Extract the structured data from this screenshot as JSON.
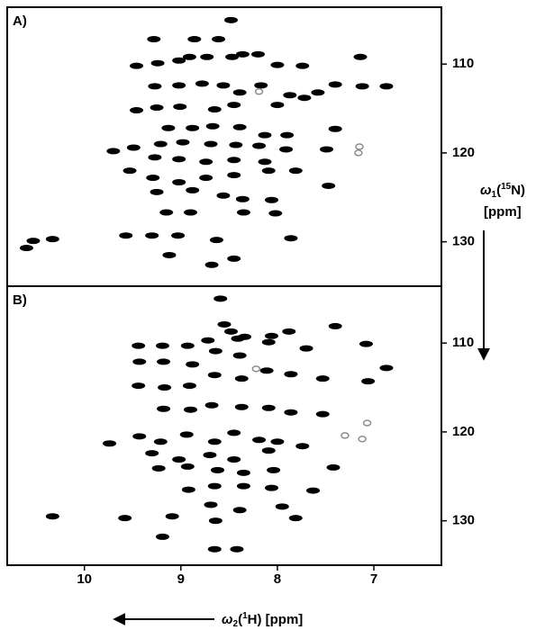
{
  "chart_data": [
    {
      "type": "scatter",
      "label": "A)",
      "xlim": [
        10.8,
        6.3
      ],
      "ylim": [
        135,
        103.6
      ],
      "yticks": [
        110,
        120,
        130
      ],
      "color": "#000000",
      "minor_color": "#8c8c8c",
      "ylabel": [
        "ω",
        "1",
        "(",
        "15",
        "N)",
        "[ppm]"
      ],
      "x": [
        9.28,
        8.86,
        8.61,
        8.48,
        9.46,
        9.24,
        9.02,
        8.91,
        8.73,
        8.47,
        8.36,
        8.2,
        8.0,
        7.74,
        7.14,
        9.27,
        9.02,
        8.78,
        8.56,
        8.39,
        8.17,
        7.87,
        7.58,
        7.4,
        7.12,
        6.87,
        9.46,
        9.25,
        9.01,
        8.65,
        8.45,
        8.0,
        7.72,
        7.4,
        9.13,
        8.88,
        8.67,
        8.39,
        8.13,
        7.9,
        9.7,
        9.49,
        9.21,
        8.98,
        8.69,
        8.43,
        8.19,
        7.91,
        7.49,
        9.27,
        9.02,
        8.74,
        8.45,
        8.13,
        9.53,
        9.29,
        9.02,
        8.74,
        8.45,
        8.09,
        7.81,
        9.25,
        8.88,
        8.56,
        8.36,
        8.06,
        7.47,
        9.15,
        8.9,
        8.35,
        8.02,
        10.53,
        10.33,
        10.6,
        9.57,
        9.3,
        9.03,
        8.63,
        7.86,
        9.12,
        8.68,
        8.45
      ],
      "y": [
        107.2,
        107.2,
        107.2,
        105.05,
        110.2,
        109.9,
        109.6,
        109.2,
        109.2,
        109.2,
        108.9,
        108.9,
        110.1,
        110.2,
        109.2,
        112.5,
        112.4,
        112.2,
        112.4,
        113.2,
        112.4,
        113.5,
        113.2,
        112.3,
        112.5,
        112.5,
        115.2,
        114.9,
        114.8,
        115.1,
        114.6,
        114.6,
        113.8,
        117.3,
        117.2,
        117.2,
        117.0,
        117.1,
        118.0,
        118.0,
        119.8,
        119.4,
        119.0,
        118.8,
        119.0,
        119.1,
        119.2,
        119.6,
        119.6,
        120.5,
        120.7,
        121.0,
        120.8,
        121.0,
        122.0,
        122.8,
        123.3,
        122.8,
        122.5,
        122.0,
        122.0,
        124.4,
        124.2,
        124.8,
        125.2,
        125.3,
        123.7,
        126.7,
        126.7,
        126.7,
        126.8,
        129.9,
        129.7,
        130.7,
        129.3,
        129.3,
        129.3,
        129.8,
        129.6,
        131.5,
        132.6,
        131.9
      ],
      "minor_x": [
        8.19,
        7.15,
        7.16
      ],
      "minor_y": [
        113.1,
        119.3,
        120.0
      ]
    },
    {
      "type": "scatter",
      "label": "B)",
      "xlim": [
        10.8,
        6.3
      ],
      "ylim": [
        135,
        103.6
      ],
      "yticks": [
        110,
        120,
        130
      ],
      "xticks": [
        10,
        9,
        8,
        7
      ],
      "color": "#000000",
      "minor_color": "#8c8c8c",
      "xlabel": [
        "ω",
        "2",
        "(",
        "1",
        "H) [ppm]"
      ],
      "x": [
        8.59,
        8.55,
        8.48,
        8.41,
        8.72,
        8.34,
        8.06,
        7.88,
        7.4,
        9.44,
        9.19,
        8.93,
        8.64,
        8.39,
        8.09,
        7.7,
        7.08,
        6.87,
        9.43,
        9.18,
        8.88,
        9.44,
        9.17,
        8.91,
        8.65,
        8.37,
        8.11,
        7.86,
        7.53,
        7.06,
        9.18,
        8.9,
        8.68,
        8.37,
        8.09,
        7.86,
        7.53,
        9.74,
        9.43,
        9.21,
        8.94,
        8.65,
        8.45,
        8.19,
        8.0,
        7.74,
        9.3,
        9.02,
        8.7,
        8.45,
        8.09,
        9.23,
        8.93,
        8.62,
        8.35,
        8.04,
        7.42,
        8.92,
        8.65,
        8.35,
        8.06,
        7.63,
        8.69,
        8.39,
        7.95,
        10.33,
        9.58,
        9.09,
        8.64,
        7.81,
        9.19,
        8.65,
        8.42
      ],
      "y": [
        105.0,
        107.9,
        108.7,
        109.5,
        109.7,
        109.3,
        109.2,
        108.7,
        108.1,
        110.3,
        110.3,
        110.3,
        110.9,
        111.4,
        109.9,
        110.6,
        110.1,
        112.8,
        112.1,
        112.1,
        112.4,
        114.8,
        115.0,
        114.8,
        113.6,
        114.0,
        113.1,
        113.5,
        114.0,
        114.3,
        117.4,
        117.5,
        117.0,
        117.2,
        117.3,
        117.8,
        118.0,
        121.3,
        120.5,
        121.1,
        120.3,
        121.1,
        120.1,
        120.9,
        121.1,
        121.6,
        122.4,
        123.1,
        122.6,
        123.1,
        122.1,
        124.1,
        123.9,
        124.3,
        124.6,
        124.3,
        124.0,
        126.5,
        126.1,
        126.1,
        126.3,
        126.6,
        128.2,
        128.8,
        128.4,
        129.5,
        129.7,
        129.5,
        130.0,
        129.7,
        131.8,
        133.2,
        133.2
      ],
      "minor_x": [
        8.22,
        7.07,
        7.12,
        7.3
      ],
      "minor_y": [
        112.9,
        119.0,
        120.8,
        120.4
      ]
    }
  ]
}
